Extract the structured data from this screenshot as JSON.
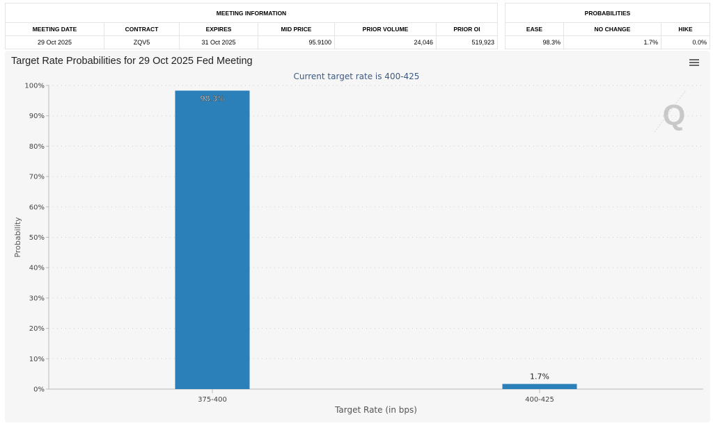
{
  "meeting_table": {
    "group_header": "MEETING INFORMATION",
    "columns": [
      "MEETING DATE",
      "CONTRACT",
      "EXPIRES",
      "MID PRICE",
      "PRIOR VOLUME",
      "PRIOR OI"
    ],
    "row": [
      "29 Oct 2025",
      "ZQV5",
      "31 Oct 2025",
      "95.9100",
      "24,046",
      "519,923"
    ]
  },
  "prob_table": {
    "group_header": "PROBABILITIES",
    "columns": [
      "EASE",
      "NO CHANGE",
      "HIKE"
    ],
    "row": [
      "98.3%",
      "1.7%",
      "0.0%"
    ]
  },
  "menu_icon": "hamburger-menu-icon",
  "watermark": "Q",
  "chart_data": {
    "type": "bar",
    "title": "Target Rate Probabilities for 29 Oct 2025 Fed Meeting",
    "subtitle": "Current target rate is 400-425",
    "categories": [
      "375-400",
      "400-425"
    ],
    "values": [
      98.3,
      1.7
    ],
    "data_labels": [
      "98.3%",
      "1.7%"
    ],
    "xlabel": "Target Rate (in bps)",
    "ylabel": "Probability",
    "ylim": [
      0,
      100
    ],
    "yticks": [
      "0%",
      "10%",
      "20%",
      "30%",
      "40%",
      "50%",
      "60%",
      "70%",
      "80%",
      "90%",
      "100%"
    ],
    "grid": true,
    "bar_color": "#2b80b9"
  }
}
